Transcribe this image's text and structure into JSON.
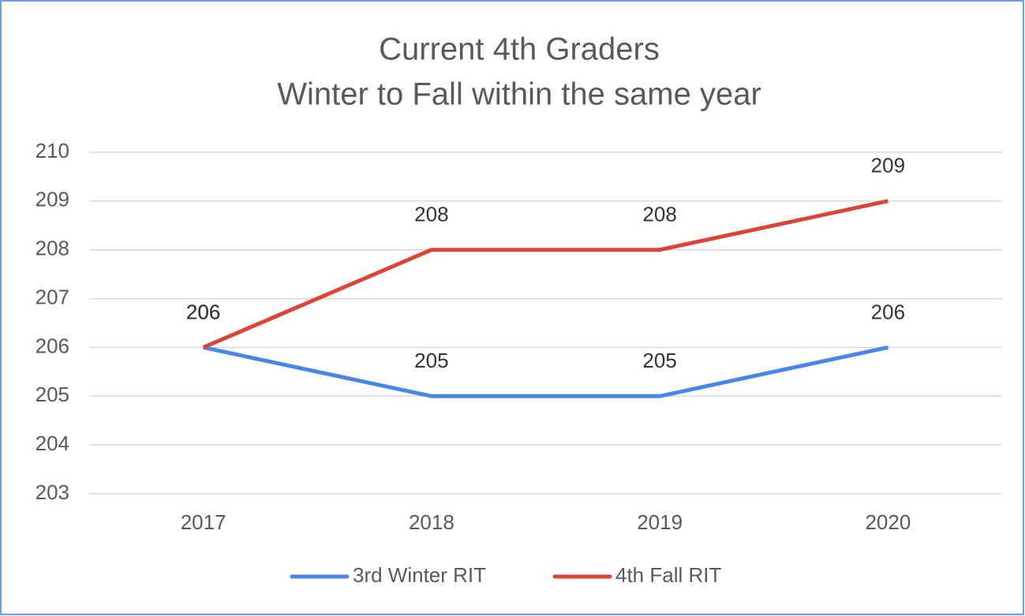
{
  "chart_data": {
    "type": "line",
    "title": [
      "Current 4th Graders",
      "Winter to Fall within the same year"
    ],
    "categories": [
      "2017",
      "2018",
      "2019",
      "2020"
    ],
    "series": [
      {
        "name": "3rd Winter RIT",
        "color": "#4a86e8",
        "values": [
          206,
          205,
          205,
          206
        ]
      },
      {
        "name": "4th Fall RIT",
        "color": "#db4437",
        "values": [
          206,
          208,
          208,
          209
        ]
      }
    ],
    "ylim": [
      203,
      210
    ],
    "yticks": [
      203,
      204,
      205,
      206,
      207,
      208,
      209,
      210
    ],
    "grid": true,
    "data_labels": true,
    "legend": "bottom"
  }
}
